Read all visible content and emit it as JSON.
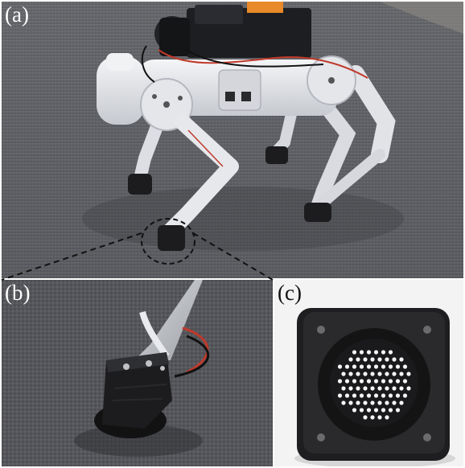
{
  "figure": {
    "panels": [
      {
        "label": "(a)",
        "subject": "quadruped-robot-walking-on-carpet"
      },
      {
        "label": "(b)",
        "subject": "close-up-of-robot-foot-with-sensor"
      },
      {
        "label": "(c)",
        "subject": "tactile-sensor-foot-with-hole-array"
      }
    ]
  },
  "colors": {
    "carpet": "#5e5f64",
    "carpet_dark": "#3f4045",
    "robot_white": "#e9eaee",
    "robot_shadow": "#b9bcc3",
    "foot_black": "#1c1c1e",
    "wire_red": "#c0392b",
    "wire_orange": "#e8892a",
    "background_white": "#f4f4f4"
  }
}
